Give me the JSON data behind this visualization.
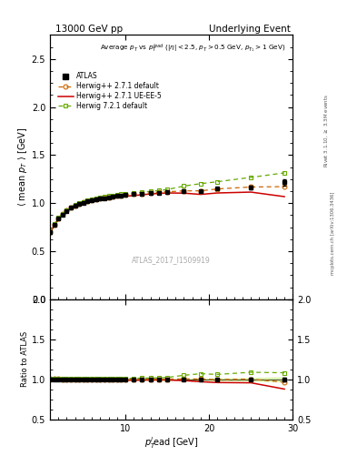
{
  "title_left": "13000 GeV pp",
  "title_right": "Underlying Event",
  "plot_title": "Average $p_T$ vs $p_T^{lead}$ ($|\\eta| < 2.5$, $p_T > 0.5$ GeV, $p_{T_1} > 1$ GeV)",
  "ylabel_main": "$\\langle$ mean $p_T$ $\\rangle$ [GeV]",
  "ylabel_ratio": "Ratio to ATLAS",
  "xlabel": "$p_T^l$$_{T}$ead [GeV]",
  "right_label_top": "Rivet 3.1.10, $\\geq$ 3.3M events",
  "right_label_bot": "mcplots.cern.ch [arXiv:1306.3436]",
  "watermark": "ATLAS_2017_I1509919",
  "ylim_main": [
    0.0,
    2.75
  ],
  "ylim_ratio": [
    0.5,
    2.0
  ],
  "xlim": [
    1,
    30
  ],
  "atlas_x": [
    1.0,
    1.5,
    2.0,
    2.5,
    3.0,
    3.5,
    4.0,
    4.5,
    5.0,
    5.5,
    6.0,
    6.5,
    7.0,
    7.5,
    8.0,
    8.5,
    9.0,
    9.5,
    10.0,
    11.0,
    12.0,
    13.0,
    14.0,
    15.0,
    17.0,
    19.0,
    21.0,
    25.0,
    29.0
  ],
  "atlas_y": [
    0.695,
    0.775,
    0.84,
    0.883,
    0.92,
    0.95,
    0.975,
    0.992,
    1.005,
    1.018,
    1.028,
    1.038,
    1.046,
    1.053,
    1.06,
    1.068,
    1.075,
    1.078,
    1.083,
    1.092,
    1.098,
    1.105,
    1.11,
    1.115,
    1.121,
    1.124,
    1.152,
    1.165,
    1.215
  ],
  "atlas_yerr": [
    0.012,
    0.01,
    0.009,
    0.008,
    0.008,
    0.007,
    0.007,
    0.006,
    0.006,
    0.006,
    0.005,
    0.005,
    0.005,
    0.005,
    0.005,
    0.005,
    0.005,
    0.005,
    0.005,
    0.005,
    0.005,
    0.005,
    0.005,
    0.006,
    0.007,
    0.009,
    0.012,
    0.018,
    0.03
  ],
  "hw271_x": [
    1.0,
    1.5,
    2.0,
    2.5,
    3.0,
    3.5,
    4.0,
    4.5,
    5.0,
    5.5,
    6.0,
    6.5,
    7.0,
    7.5,
    8.0,
    8.5,
    9.0,
    9.5,
    10.0,
    11.0,
    12.0,
    13.0,
    14.0,
    15.0,
    17.0,
    19.0,
    21.0,
    25.0,
    29.0
  ],
  "hw271_y": [
    0.7,
    0.778,
    0.843,
    0.886,
    0.923,
    0.952,
    0.977,
    0.994,
    1.007,
    1.02,
    1.03,
    1.04,
    1.048,
    1.055,
    1.062,
    1.07,
    1.077,
    1.08,
    1.085,
    1.094,
    1.1,
    1.107,
    1.112,
    1.118,
    1.128,
    1.128,
    1.148,
    1.168,
    1.172
  ],
  "hw271ue_x": [
    1.0,
    1.5,
    2.0,
    2.5,
    3.0,
    3.5,
    4.0,
    4.5,
    5.0,
    5.5,
    6.0,
    6.5,
    7.0,
    7.5,
    8.0,
    8.5,
    9.0,
    9.5,
    10.0,
    11.0,
    12.0,
    13.0,
    14.0,
    15.0,
    17.0,
    19.0,
    21.0,
    25.0,
    29.0
  ],
  "hw271ue_y": [
    0.688,
    0.766,
    0.831,
    0.874,
    0.911,
    0.94,
    0.964,
    0.981,
    0.994,
    1.006,
    1.016,
    1.026,
    1.034,
    1.04,
    1.048,
    1.056,
    1.063,
    1.066,
    1.072,
    1.079,
    1.087,
    1.096,
    1.101,
    1.106,
    1.104,
    1.091,
    1.106,
    1.115,
    1.068
  ],
  "hw721_x": [
    1.0,
    1.5,
    2.0,
    2.5,
    3.0,
    3.5,
    4.0,
    4.5,
    5.0,
    5.5,
    6.0,
    6.5,
    7.0,
    7.5,
    8.0,
    8.5,
    9.0,
    9.5,
    10.0,
    11.0,
    12.0,
    13.0,
    14.0,
    15.0,
    17.0,
    19.0,
    21.0,
    25.0,
    29.0
  ],
  "hw721_y": [
    0.698,
    0.78,
    0.847,
    0.891,
    0.928,
    0.958,
    0.983,
    1.001,
    1.015,
    1.028,
    1.039,
    1.049,
    1.058,
    1.065,
    1.073,
    1.081,
    1.088,
    1.092,
    1.097,
    1.107,
    1.115,
    1.123,
    1.131,
    1.141,
    1.178,
    1.203,
    1.223,
    1.268,
    1.315
  ],
  "color_atlas": "#000000",
  "color_hw271": "#cc6600",
  "color_hw271ue": "#cc0000",
  "color_hw721": "#66aa00",
  "ratio_band_color": "#ccee88",
  "ratio_band_alpha": 0.6
}
